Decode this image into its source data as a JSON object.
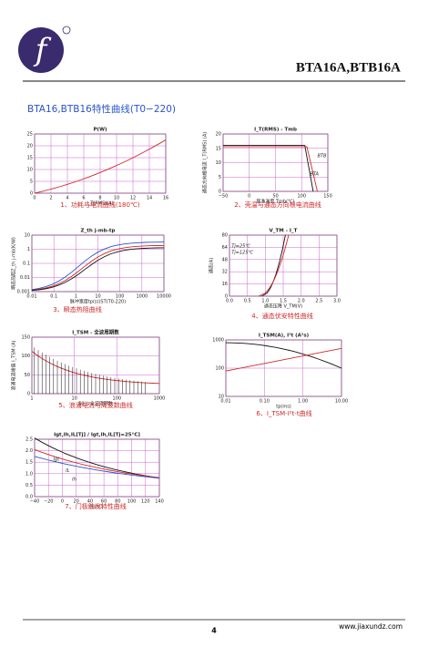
{
  "header": {
    "logo": "f",
    "brand": "BTA16A,BTB16A"
  },
  "section_title": "BTA16,BTB16特性曲线(T0−220)",
  "figures": [
    {
      "caption": "1、功耗与电流曲线(180℃)",
      "title": "P(W)",
      "xlabel": "I_T(RMS)(A)",
      "xticks": [
        "0",
        "2",
        "4",
        "6",
        "8",
        "10",
        "12",
        "14",
        "16"
      ],
      "yticks": [
        "0",
        "5",
        "10",
        "15",
        "20",
        "25"
      ]
    },
    {
      "caption": "2、壳温与通态方向根电流曲线",
      "title": "I_T(RMS) - Tmb",
      "ylabel": "通态方向根电流 I_T(RMS) (A)",
      "xlabel": "基准温度 Tmb(℃)",
      "xticks": [
        "−50",
        "0",
        "50",
        "100",
        "150"
      ],
      "yticks": [
        "0",
        "5",
        "10",
        "15",
        "20"
      ],
      "notes": [
        "BTB",
        "BTA"
      ]
    },
    {
      "caption": "3、瞬态热阻曲线",
      "title": "Z_th j-mb-tp",
      "ylabel": "瞬态热阻Z_th j-mb(K/W)",
      "xlabel": "脉冲宽度tp(s)(ST(T0-220)",
      "xticks": [
        "0.01",
        "0.1",
        "1",
        "10",
        "100",
        "1000",
        "10000"
      ],
      "yticks": [
        "0.001",
        "0.01",
        "0.1",
        "1",
        "10"
      ]
    },
    {
      "caption": "4、通态伏安特性曲线",
      "title": "V_TM - I_T",
      "ylabel": "通态(A)",
      "xlabel": "通态压降 V_TM(V)",
      "xticks": [
        "0.0",
        "0.5",
        "1.0",
        "1.5",
        "2.0",
        "2.5",
        "3.0"
      ],
      "yticks": [
        "0",
        "16",
        "32",
        "48",
        "64",
        "80"
      ],
      "notes": [
        "Tj=25℃",
        "Tj=125℃"
      ]
    },
    {
      "caption": "5、浪涌电流与周波数曲线",
      "title": "I_TSM - 全波周期数",
      "ylabel": "浪涌电流峰值 I_TSM (A)",
      "xlabel": "50Hz全波周期数",
      "xticks": [
        "1",
        "10",
        "100",
        "1000"
      ],
      "yticks": [
        "0",
        "50",
        "100",
        "150"
      ]
    },
    {
      "caption": "6、I_TSM-I²t-t曲线",
      "title": "I_TSM(A), I²t (A²s)",
      "xlabel": "tp(ms)",
      "xticks": [
        "0.01",
        "0.10",
        "1.00",
        "10.00"
      ],
      "yticks": [
        "10",
        "100",
        "1000"
      ]
    },
    {
      "caption": "7、门极触发特性曲线",
      "title": "Igt,Ih,IL[Tj] / Igt,Ih,IL[Tj=25°C]",
      "xlabel": "Tj(°C)",
      "xticks": [
        "−40",
        "−20",
        "0",
        "20",
        "40",
        "60",
        "80",
        "100",
        "120",
        "140"
      ],
      "yticks": [
        "0.0",
        "0.5",
        "1.0",
        "1.5",
        "2.0",
        "2.5"
      ],
      "notes": [
        "Igt",
        "IL",
        "Ih"
      ]
    }
  ],
  "footer": {
    "page": "4",
    "url": "www.jiaxundz.com"
  }
}
